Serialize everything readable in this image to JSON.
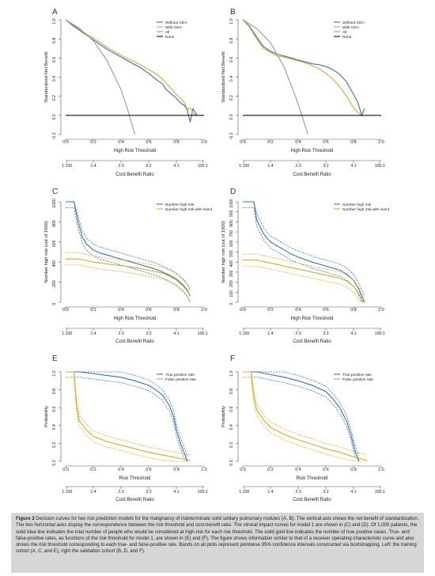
{
  "figure_caption": {
    "label": "Figure 2",
    "text": "Decision curves for two risk prediction models for the malignancy of indeterminate solid solitary pulmonary nodules (A, B). The vertical axis shows the net benefit of standardization. The two horizontal axes display the correspondence between the risk threshold and cost-benefit ratio. The clinical impact curves for model 1 are shown in (C) and (D). Of 1,000 patients, the solid blue line indicates the total number of people who would be considered at high-risk for each risk threshold. The solid gold line indicates the number of true positive cases. True- and false-positive rates, as functions of the risk threshold for model 1, are shown in (E) and (F). The figure shows information similar to that of a receiver operating characteristic curve and also shows the risk threshold corresponding to each true- and false-positive rate. Bands on all plots represent pointwise 95% confidence intervals constructed via bootstrapping. Left: the training cohort (A, C, and E), right the validation cohort (B, D, and F)."
  },
  "colors": {
    "blue": "#3a6fb0",
    "gold": "#d6aa2c",
    "gray": "#999999",
    "black": "#111111"
  },
  "chart_data": [
    {
      "panel": "A",
      "type": "line",
      "ylabel": "Standardized Net Benefit",
      "xlabel": "High Risk Threshold",
      "x2label": "Cost:Benefit Ratio",
      "xlim": [
        0,
        1
      ],
      "ylim": [
        -0.2,
        1
      ],
      "xticks": [
        "0.0",
        "0.2",
        "0.4",
        "0.6",
        "0.8",
        "1.0"
      ],
      "yticks": [
        "-0.2",
        "0.0",
        "0.2",
        "0.4",
        "0.6",
        "0.8",
        "1.0"
      ],
      "x2ticks": [
        "1:100",
        "1:4",
        "2:3",
        "3:2",
        "4:1",
        "100:1"
      ],
      "legend": [
        "Without CEA",
        "With CEA",
        "All",
        "None"
      ],
      "legend_position": "top-right",
      "series": [
        {
          "name": "Without CEA",
          "x": [
            0,
            0.05,
            0.1,
            0.15,
            0.2,
            0.25,
            0.3,
            0.35,
            0.4,
            0.45,
            0.5,
            0.55,
            0.6,
            0.65,
            0.7,
            0.72,
            0.75,
            0.8,
            0.83,
            0.86,
            0.88,
            0.9,
            0.92,
            0.95
          ],
          "y": [
            1.0,
            0.94,
            0.89,
            0.84,
            0.79,
            0.74,
            0.69,
            0.65,
            0.61,
            0.57,
            0.53,
            0.49,
            0.44,
            0.38,
            0.33,
            0.28,
            0.24,
            0.18,
            0.13,
            0.1,
            0.05,
            -0.07,
            0.07,
            0.0
          ]
        },
        {
          "name": "With CEA",
          "x": [
            0,
            0.05,
            0.1,
            0.15,
            0.2,
            0.25,
            0.3,
            0.35,
            0.4,
            0.45,
            0.5,
            0.55,
            0.6,
            0.65,
            0.7,
            0.75,
            0.8,
            0.85,
            0.88,
            0.9,
            0.92,
            0.95
          ],
          "y": [
            1.0,
            0.95,
            0.9,
            0.85,
            0.81,
            0.76,
            0.71,
            0.67,
            0.63,
            0.59,
            0.56,
            0.52,
            0.48,
            0.44,
            0.38,
            0.3,
            0.22,
            0.15,
            0.06,
            0.08,
            0.02,
            0.0
          ]
        },
        {
          "name": "All",
          "x": [
            0,
            0.1,
            0.2,
            0.3,
            0.4,
            0.45,
            0.5
          ],
          "y": [
            1.0,
            0.91,
            0.78,
            0.57,
            0.27,
            0.05,
            -0.2
          ]
        },
        {
          "name": "None",
          "x": [
            0,
            1
          ],
          "y": [
            0,
            0
          ]
        }
      ]
    },
    {
      "panel": "B",
      "type": "line",
      "ylabel": "Standardized Net Benefit",
      "xlabel": "High Risk Threshold",
      "x2label": "Cost:Benefit Ratio",
      "xlim": [
        0,
        1
      ],
      "ylim": [
        -0.2,
        1
      ],
      "xticks": [
        "0.0",
        "0.2",
        "0.4",
        "0.6",
        "0.8",
        "1.0"
      ],
      "yticks": [
        "-0.2",
        "0.0",
        "0.2",
        "0.4",
        "0.6",
        "0.8",
        "1.0"
      ],
      "x2ticks": [
        "1:100",
        "1:4",
        "2:3",
        "3:2",
        "4:1",
        "100:1"
      ],
      "legend": [
        "Without CEA",
        "With CEA",
        "All",
        "None"
      ],
      "legend_position": "top-right",
      "series": [
        {
          "name": "Without CEA",
          "x": [
            0,
            0.05,
            0.1,
            0.15,
            0.2,
            0.25,
            0.3,
            0.35,
            0.4,
            0.45,
            0.5,
            0.55,
            0.6,
            0.65,
            0.7,
            0.75,
            0.8,
            0.83,
            0.86,
            0.88
          ],
          "y": [
            1.0,
            0.93,
            0.82,
            0.72,
            0.67,
            0.64,
            0.62,
            0.6,
            0.58,
            0.56,
            0.54,
            0.53,
            0.51,
            0.48,
            0.43,
            0.35,
            0.22,
            0.14,
            0.0,
            0.07
          ]
        },
        {
          "name": "With CEA",
          "x": [
            0,
            0.05,
            0.1,
            0.15,
            0.2,
            0.25,
            0.3,
            0.35,
            0.4,
            0.45,
            0.5,
            0.55,
            0.6,
            0.65,
            0.7,
            0.75,
            0.8,
            0.83,
            0.86
          ],
          "y": [
            1.0,
            0.92,
            0.8,
            0.7,
            0.66,
            0.62,
            0.61,
            0.59,
            0.57,
            0.55,
            0.52,
            0.49,
            0.44,
            0.38,
            0.3,
            0.2,
            0.08,
            0.03,
            0.0
          ]
        },
        {
          "name": "All",
          "x": [
            0,
            0.1,
            0.2,
            0.3,
            0.38,
            0.42,
            0.47
          ],
          "y": [
            1.0,
            0.91,
            0.76,
            0.5,
            0.2,
            0.03,
            -0.2
          ]
        },
        {
          "name": "None",
          "x": [
            0,
            1
          ],
          "y": [
            0,
            0
          ]
        }
      ]
    },
    {
      "panel": "C",
      "type": "line",
      "ylabel": "Number high risk (out of 1000)",
      "xlabel": "High Risk Threshold",
      "x2label": "Cost:Benefit Ratio",
      "xlim": [
        0,
        1
      ],
      "ylim": [
        0,
        1000
      ],
      "xticks": [
        "0.0",
        "0.2",
        "0.4",
        "0.6",
        "0.8",
        "1.0"
      ],
      "yticks": [
        "0",
        "200",
        "400",
        "600",
        "800",
        "1000"
      ],
      "x2ticks": [
        "1:100",
        "1:4",
        "2:3",
        "3:2",
        "4:1",
        "100:1"
      ],
      "legend": [
        "Number high risk",
        "Number high risk with event"
      ],
      "legend_position": "top-right",
      "series": [
        {
          "name": "Number high risk",
          "x": [
            0,
            0.06,
            0.09,
            0.12,
            0.15,
            0.2,
            0.25,
            0.3,
            0.35,
            0.4,
            0.45,
            0.5,
            0.55,
            0.6,
            0.65,
            0.7,
            0.75,
            0.8,
            0.85,
            0.88,
            0.9
          ],
          "y": [
            1000,
            1000,
            800,
            650,
            580,
            520,
            490,
            470,
            450,
            430,
            410,
            390,
            370,
            350,
            330,
            300,
            270,
            230,
            170,
            120,
            60
          ]
        },
        {
          "name": "Number high risk with event",
          "x": [
            0,
            0.1,
            0.2,
            0.3,
            0.4,
            0.5,
            0.6,
            0.7,
            0.75,
            0.8,
            0.85,
            0.88,
            0.9
          ],
          "y": [
            430,
            430,
            400,
            380,
            365,
            345,
            320,
            290,
            260,
            220,
            160,
            110,
            60
          ]
        }
      ]
    },
    {
      "panel": "D",
      "type": "line",
      "ylabel": "Number high risk (out of 1000)",
      "xlabel": "High Risk Threshold",
      "x2label": "Cost:Benefit Ratio",
      "xlim": [
        0,
        1
      ],
      "ylim": [
        0,
        1000
      ],
      "xticks": [
        "0.0",
        "0.2",
        "0.4",
        "0.6",
        "0.8",
        "1.0"
      ],
      "yticks": [
        "0",
        "100",
        "200",
        "300",
        "400",
        "500",
        "600",
        "700",
        "800",
        "900",
        "1000"
      ],
      "x2ticks": [
        "1:100",
        "1:4",
        "2:3",
        "3:2",
        "4:1",
        "100:1"
      ],
      "legend": [
        "Number high risk",
        "Number high risk with event"
      ],
      "legend_position": "top-right",
      "series": [
        {
          "name": "Number high risk",
          "x": [
            0,
            0.08,
            0.1,
            0.15,
            0.2,
            0.25,
            0.3,
            0.35,
            0.4,
            0.5,
            0.6,
            0.7,
            0.75,
            0.8,
            0.83,
            0.86,
            0.88
          ],
          "y": [
            1000,
            1000,
            820,
            680,
            600,
            560,
            520,
            480,
            450,
            400,
            360,
            320,
            280,
            220,
            150,
            60,
            0
          ]
        },
        {
          "name": "Number high risk with event",
          "x": [
            0,
            0.1,
            0.2,
            0.3,
            0.4,
            0.5,
            0.6,
            0.7,
            0.75,
            0.8,
            0.84,
            0.87
          ],
          "y": [
            420,
            420,
            390,
            360,
            330,
            300,
            270,
            240,
            210,
            160,
            80,
            0
          ]
        }
      ]
    },
    {
      "panel": "E",
      "type": "line",
      "ylabel": "Probability",
      "xlabel": "Risk Threshold",
      "x2label": "Cost:Benefit Ratio",
      "xlim": [
        0,
        1
      ],
      "ylim": [
        0,
        1
      ],
      "xticks": [
        "0.0",
        "0.2",
        "0.4",
        "0.6",
        "0.8",
        "1.0"
      ],
      "yticks": [
        "0.0",
        "0.2",
        "0.4",
        "0.6",
        "0.8",
        "1.0"
      ],
      "x2ticks": [
        "1:100",
        "1:4",
        "2:3",
        "3:2",
        "4:1",
        "100:1"
      ],
      "legend": [
        "True positive rate",
        "False positive rate"
      ],
      "legend_position": "top-right",
      "series": [
        {
          "name": "True positive rate",
          "x": [
            0,
            0.1,
            0.2,
            0.3,
            0.4,
            0.5,
            0.6,
            0.65,
            0.7,
            0.75,
            0.78,
            0.8,
            0.83,
            0.86,
            0.88
          ],
          "y": [
            1.0,
            1.0,
            0.98,
            0.96,
            0.94,
            0.9,
            0.85,
            0.8,
            0.74,
            0.62,
            0.5,
            0.35,
            0.2,
            0.08,
            0.0
          ]
        },
        {
          "name": "False positive rate",
          "x": [
            0,
            0.06,
            0.08,
            0.1,
            0.15,
            0.2,
            0.3,
            0.4,
            0.5,
            0.6,
            0.7,
            0.8,
            0.9
          ],
          "y": [
            1.0,
            1.0,
            0.6,
            0.45,
            0.35,
            0.28,
            0.22,
            0.18,
            0.14,
            0.1,
            0.07,
            0.04,
            0.01
          ]
        }
      ]
    },
    {
      "panel": "F",
      "type": "line",
      "ylabel": "Probability",
      "xlabel": "Risk Threshold",
      "x2label": "Cost:Benefit Ratio",
      "xlim": [
        0,
        1
      ],
      "ylim": [
        0,
        1
      ],
      "xticks": [
        "0.0",
        "0.2",
        "0.4",
        "0.6",
        "0.8",
        "1.0"
      ],
      "yticks": [
        "0.0",
        "0.2",
        "0.4",
        "0.6",
        "0.8",
        "1.0"
      ],
      "x2ticks": [
        "1:100",
        "1:4",
        "2:3",
        "3:2",
        "4:1",
        "100:1"
      ],
      "legend": [
        "True positive rate",
        "False positive rate"
      ],
      "legend_position": "top-right",
      "series": [
        {
          "name": "True positive rate",
          "x": [
            0,
            0.1,
            0.2,
            0.3,
            0.4,
            0.5,
            0.6,
            0.65,
            0.7,
            0.75,
            0.78,
            0.81,
            0.84
          ],
          "y": [
            1.0,
            1.0,
            0.97,
            0.94,
            0.9,
            0.85,
            0.78,
            0.7,
            0.6,
            0.45,
            0.3,
            0.12,
            0.0
          ]
        },
        {
          "name": "False positive rate",
          "x": [
            0,
            0.06,
            0.08,
            0.1,
            0.15,
            0.2,
            0.3,
            0.4,
            0.5,
            0.6,
            0.7,
            0.8,
            0.9
          ],
          "y": [
            1.0,
            1.0,
            0.72,
            0.58,
            0.46,
            0.38,
            0.3,
            0.24,
            0.19,
            0.14,
            0.1,
            0.05,
            0.01
          ]
        }
      ]
    }
  ]
}
